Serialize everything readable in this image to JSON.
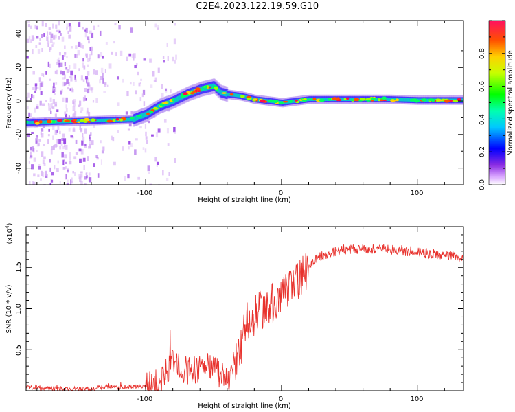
{
  "title": "C2E4.2023.122.19.59.G10",
  "chart_data": [
    {
      "type": "heatmap",
      "xlabel": "Height of straight line (km)",
      "ylabel": "Frequency (Hz)",
      "xlim": [
        -188,
        134
      ],
      "ylim": [
        -50,
        48
      ],
      "xticks": [
        "-100",
        "0",
        "100"
      ],
      "yticks": [
        "-40",
        "-20",
        "0",
        "20",
        "40"
      ],
      "colorbar": {
        "label": "Normalized spectral amplitude",
        "range": [
          0,
          1
        ],
        "ticks": [
          "0.0",
          "0.2",
          "0.4",
          "0.6",
          "0.8"
        ]
      },
      "ridge": {
        "x": [
          -188,
          -170,
          -150,
          -130,
          -110,
          -100,
          -90,
          -80,
          -70,
          -60,
          -50,
          -45,
          -40,
          -30,
          -20,
          -10,
          0,
          10,
          20,
          40,
          60,
          80,
          100,
          120,
          134
        ],
        "y": [
          -13,
          -12.5,
          -12,
          -11.5,
          -11,
          -8,
          -3,
          0,
          4,
          7,
          9,
          5,
          4,
          3,
          1,
          0,
          -1,
          0,
          1,
          1,
          1,
          1,
          0.5,
          0.5,
          0.5
        ]
      }
    },
    {
      "type": "line",
      "xlabel": "Height of straight line (km)",
      "ylabel": "SNR (10 * v/v)",
      "yscale_note": "(x10",
      "yscale_exp": "4",
      "xlim": [
        -188,
        134
      ],
      "ylim": [
        0,
        2.0
      ],
      "xticks": [
        "-100",
        "0",
        "100"
      ],
      "yticks": [
        "0.5",
        "1.0",
        "1.5"
      ],
      "color": "#e8322d",
      "series": [
        {
          "x": [
            -188,
            -180,
            -170,
            -160,
            -150,
            -140,
            -130,
            -120,
            -110,
            -100,
            -95,
            -90,
            -85,
            -80,
            -75,
            -70,
            -65,
            -60,
            -55,
            -50,
            -45,
            -40,
            -35,
            -30,
            -28,
            -25,
            -22,
            -20,
            -15,
            -10,
            -5,
            0,
            5,
            10,
            15,
            20,
            25,
            30,
            40,
            50,
            60,
            70,
            80,
            90,
            100,
            110,
            120,
            134
          ],
          "y": [
            0.05,
            0.04,
            0.03,
            0.02,
            0.02,
            0.02,
            0.05,
            0.04,
            0.05,
            0.05,
            0.08,
            0.12,
            0.22,
            0.35,
            0.28,
            0.25,
            0.25,
            0.28,
            0.3,
            0.3,
            0.2,
            0.1,
            0.25,
            0.5,
            0.7,
            0.85,
            0.95,
            0.9,
            1.0,
            1.0,
            1.1,
            1.15,
            1.2,
            1.3,
            1.4,
            1.5,
            1.6,
            1.65,
            1.7,
            1.72,
            1.73,
            1.73,
            1.72,
            1.7,
            1.7,
            1.67,
            1.65,
            1.62
          ]
        }
      ]
    }
  ]
}
